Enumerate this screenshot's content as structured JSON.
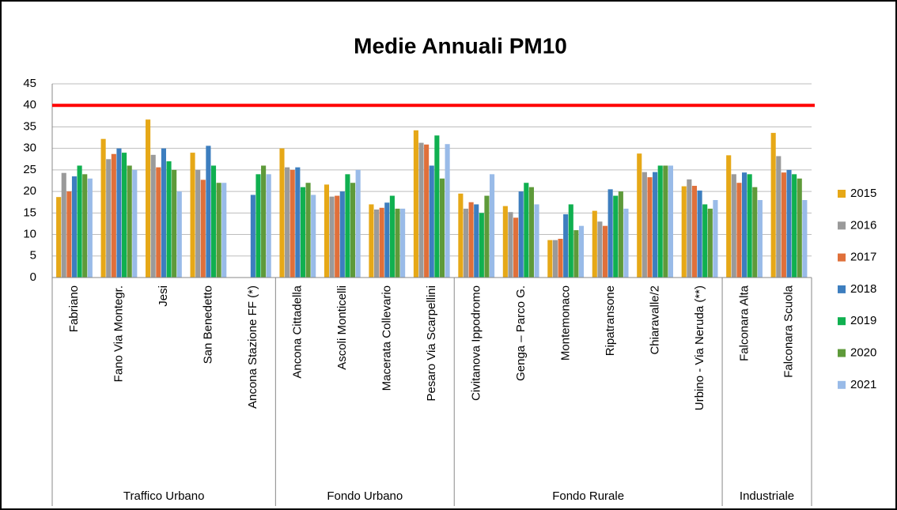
{
  "chart_data": {
    "type": "bar",
    "title": "Medie Annuali PM10",
    "categories": [
      "Fabriano",
      "Fano Via Montegr.",
      "Jesi",
      "San Benedetto",
      "Ancona Stazione FF (*)",
      "Ancona Cittadella",
      "Ascoli Monticelli",
      "Macerata Collevario",
      "Pesaro Via Scarpellini",
      "Civitanova Ippodromo",
      "Genga – Parco G.",
      "Montemonaco",
      "Ripatransone",
      "Chiaravalle/2",
      "Urbino  - Via Neruda (**)",
      "Falconara Alta",
      "Falconara Scuola"
    ],
    "groups": [
      {
        "name": "Traffico Urbano",
        "size": 5
      },
      {
        "name": "Fondo Urbano",
        "size": 4
      },
      {
        "name": "Fondo Rurale",
        "size": 6
      },
      {
        "name": "Industriale",
        "size": 2
      }
    ],
    "series": [
      {
        "name": "2015",
        "color": "#e6a817",
        "values": [
          18.7,
          32.2,
          36.7,
          29,
          null,
          30,
          21.6,
          17,
          34.2,
          19.5,
          16.6,
          8.7,
          15.5,
          28.8,
          21.2,
          28.4,
          33.6
        ]
      },
      {
        "name": "2016",
        "color": "#9a9a9a",
        "values": [
          24.3,
          27.5,
          28.5,
          25,
          null,
          25.6,
          18.8,
          15.8,
          31.3,
          16,
          15.2,
          8.7,
          13,
          24.5,
          22.8,
          24,
          28.2
        ]
      },
      {
        "name": "2017",
        "color": "#e0703a",
        "values": [
          20,
          28.7,
          25.6,
          22.7,
          null,
          25,
          19,
          16.2,
          30.9,
          17.5,
          13.9,
          9,
          12,
          23.3,
          21.3,
          22,
          24.4
        ]
      },
      {
        "name": "2018",
        "color": "#3d7ebf",
        "values": [
          23.5,
          30,
          30,
          30.6,
          19.2,
          25.6,
          20,
          17.4,
          26,
          17,
          20,
          14.7,
          20.5,
          24.5,
          20.2,
          24.4,
          25
        ]
      },
      {
        "name": "2019",
        "color": "#10b050",
        "values": [
          26,
          29,
          27,
          26,
          24,
          21,
          24,
          19,
          33,
          15,
          22,
          17,
          19,
          26,
          17,
          24,
          24
        ]
      },
      {
        "name": "2020",
        "color": "#5e9a3a",
        "values": [
          24,
          26,
          25,
          22,
          26,
          22,
          22,
          16,
          23,
          19,
          21,
          11,
          20,
          26,
          16,
          21,
          23
        ]
      },
      {
        "name": "2021",
        "color": "#99bbe8",
        "values": [
          23,
          25,
          20,
          22,
          24,
          19.2,
          25,
          16,
          31,
          24,
          17,
          12,
          16,
          26,
          18,
          18,
          18
        ]
      }
    ],
    "reference_line": {
      "value": 40,
      "color": "#ff0000"
    },
    "ylim": [
      0,
      45
    ],
    "yticks": [
      0,
      5,
      10,
      15,
      20,
      25,
      30,
      35,
      40,
      45
    ],
    "grid": true,
    "legend": "right"
  }
}
